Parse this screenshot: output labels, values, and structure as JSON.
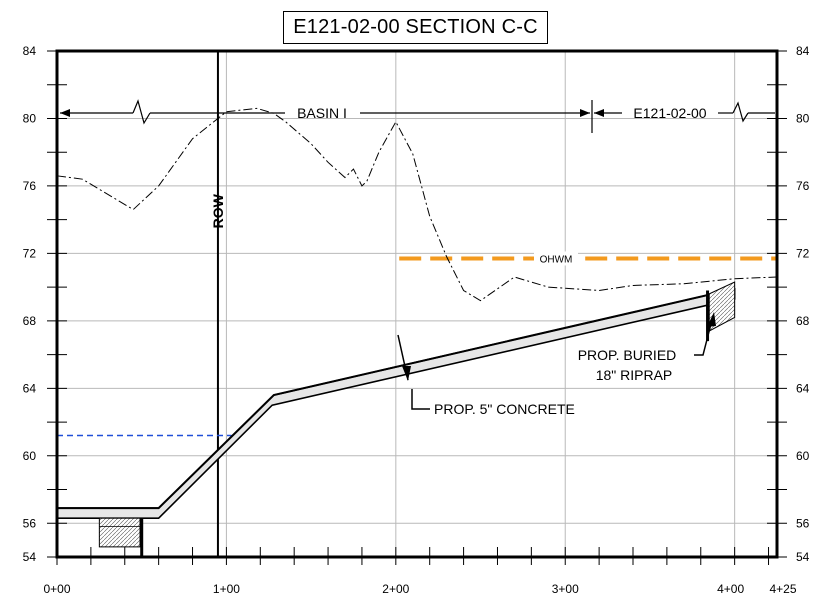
{
  "title": "E121-02-00 SECTION C-C",
  "y_axis": {
    "ticks": [
      "84",
      "80",
      "76",
      "72",
      "68",
      "64",
      "60",
      "56",
      "54"
    ]
  },
  "x_axis": {
    "ticks": [
      "0+00",
      "1+00",
      "2+00",
      "3+00",
      "4+00",
      "4+25"
    ]
  },
  "annotations": {
    "basin": "BASIN I",
    "section_id": "E121-02-00",
    "row": "ROW",
    "ohwm": "OHWM",
    "riprap_line1": "PROP. BURIED",
    "riprap_line2": "18\" RIPRAP",
    "concrete": "PROP. 5\" CONCRETE"
  },
  "colors": {
    "ohwm": "#f39a1e",
    "water_level": "#1f4fd8",
    "grid": "#b9b9b9",
    "ink": "#000000"
  },
  "chart_data": {
    "type": "line",
    "xlabel": "",
    "ylabel": "",
    "xlim_stations": [
      0,
      425
    ],
    "ylim": [
      54,
      84
    ],
    "x_tick_values": [
      0,
      100,
      200,
      300,
      400,
      425
    ],
    "y_tick_values": [
      84,
      80,
      76,
      72,
      68,
      64,
      60,
      56,
      54
    ],
    "series": [
      {
        "kind": "existing_ground",
        "x": [
          0,
          15,
          45,
          60,
          80,
          100,
          118,
          128,
          135,
          150,
          160,
          170,
          175,
          180,
          183,
          190,
          200,
          210,
          220,
          230,
          240,
          250,
          270,
          290,
          320,
          340,
          370,
          400,
          425
        ],
        "y": [
          76.6,
          76.4,
          74.6,
          76.0,
          78.8,
          80.4,
          80.6,
          80.3,
          79.8,
          78.5,
          77.4,
          76.5,
          77.0,
          76.0,
          76.3,
          78.0,
          79.8,
          77.9,
          74.2,
          71.8,
          69.8,
          69.2,
          70.6,
          70.0,
          69.8,
          70.1,
          70.2,
          70.5,
          70.6
        ]
      },
      {
        "kind": "proposed_concrete",
        "x": [
          0,
          60,
          128,
          125,
          400
        ],
        "y": [
          56.6,
          56.6,
          63.4,
          63.4,
          69.8
        ]
      },
      {
        "kind": "ohwm",
        "x": [
          202,
          425
        ],
        "y": [
          71.7,
          71.7
        ]
      },
      {
        "kind": "water_level",
        "x": [
          0,
          103
        ],
        "y": [
          61.2,
          61.2
        ]
      },
      {
        "kind": "row_line",
        "x": [
          95,
          95
        ],
        "y": [
          54,
          84
        ]
      }
    ]
  }
}
